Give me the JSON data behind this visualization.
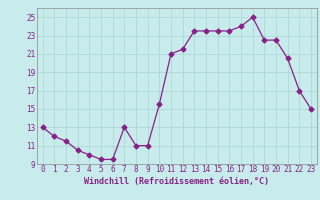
{
  "x": [
    0,
    1,
    2,
    3,
    4,
    5,
    6,
    7,
    8,
    9,
    10,
    11,
    12,
    13,
    14,
    15,
    16,
    17,
    18,
    19,
    20,
    21,
    22,
    23
  ],
  "y": [
    13,
    12,
    11.5,
    10.5,
    10,
    9.5,
    9.5,
    13,
    11,
    11,
    15.5,
    21,
    21.5,
    23.5,
    23.5,
    23.5,
    23.5,
    24,
    25,
    22.5,
    22.5,
    20.5,
    17,
    15
  ],
  "line_color": "#882288",
  "marker": "D",
  "marker_size": 2.5,
  "bg_color": "#c8ecec",
  "grid_color": "#aad4d4",
  "xlabel": "Windchill (Refroidissement éolien,°C)",
  "ylim": [
    9,
    26
  ],
  "yticks": [
    9,
    11,
    13,
    15,
    17,
    19,
    21,
    23,
    25
  ],
  "xlim": [
    -0.5,
    23.5
  ],
  "xticks": [
    0,
    1,
    2,
    3,
    4,
    5,
    6,
    7,
    8,
    9,
    10,
    11,
    12,
    13,
    14,
    15,
    16,
    17,
    18,
    19,
    20,
    21,
    22,
    23
  ],
  "tick_fontsize": 5.5,
  "xlabel_fontsize": 6
}
